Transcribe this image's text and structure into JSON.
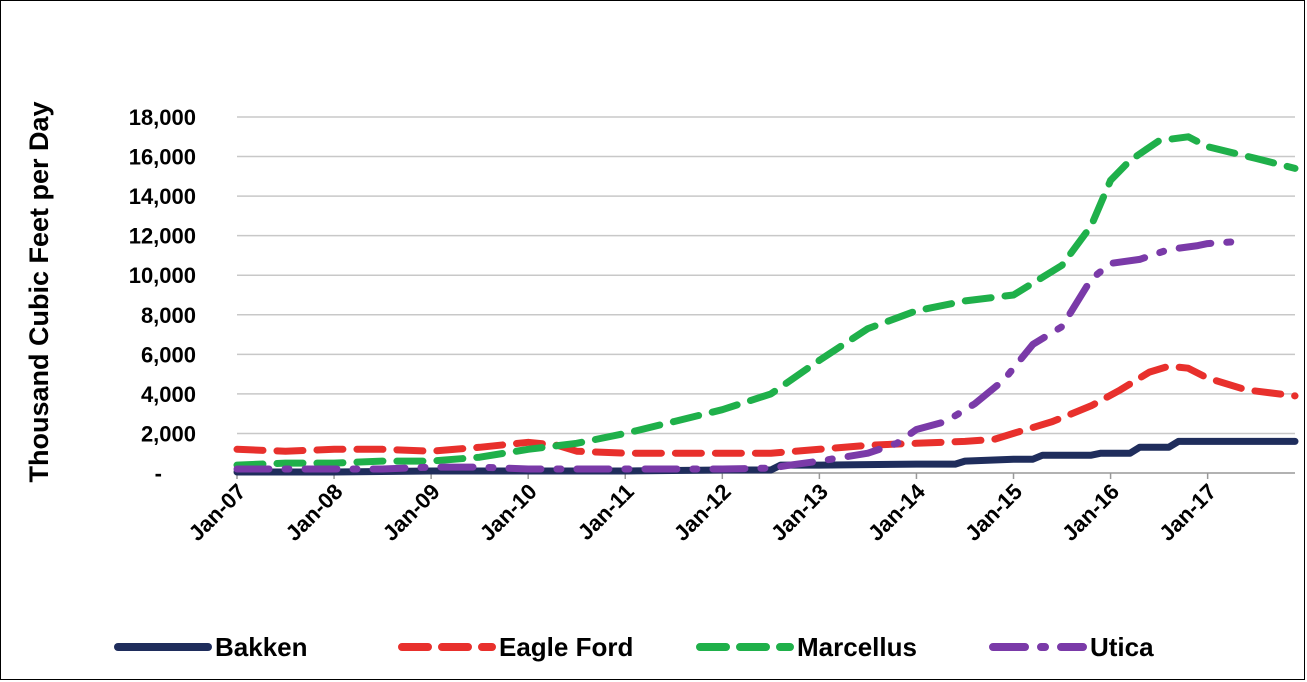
{
  "chart_data": {
    "type": "line",
    "title": "",
    "ylabel": "Thousand Cubic Feet per Day",
    "xlabel": "",
    "ylim": [
      0,
      18000
    ],
    "yticks": [
      0,
      2000,
      4000,
      6000,
      8000,
      10000,
      12000,
      14000,
      16000,
      18000
    ],
    "ytick_labels": [
      "-",
      "2,000",
      "4,000",
      "6,000",
      "8,000",
      "10,000",
      "12,000",
      "14,000",
      "16,000",
      "18,000"
    ],
    "xtick_labels": [
      "Jan-07",
      "Jan-08",
      "Jan-09",
      "Jan-10",
      "Jan-11",
      "Jan-12",
      "Jan-13",
      "Jan-14",
      "Jan-15",
      "Jan-16",
      "Jan-17"
    ],
    "xlim": [
      2007.0,
      2017.9
    ],
    "grid": "horizontal",
    "legend_position": "bottom",
    "series": [
      {
        "name": "Bakken",
        "color": "#1f2d5c",
        "style": "solid",
        "x": [
          2007.0,
          2008.0,
          2009.0,
          2010.0,
          2011.0,
          2012.0,
          2012.5,
          2012.6,
          2013.0,
          2014.0,
          2014.4,
          2014.5,
          2015.0,
          2015.2,
          2015.3,
          2015.8,
          2015.9,
          2016.2,
          2016.3,
          2016.6,
          2016.7,
          2017.0,
          2017.9
        ],
        "y": [
          50,
          50,
          100,
          100,
          100,
          150,
          150,
          400,
          400,
          450,
          450,
          600,
          700,
          700,
          900,
          900,
          1000,
          1000,
          1300,
          1300,
          1600,
          1600,
          1600
        ]
      },
      {
        "name": "Eagle Ford",
        "color": "#e8302c",
        "style": "dashed",
        "x": [
          2007.0,
          2007.5,
          2008.0,
          2008.5,
          2009.0,
          2009.5,
          2010.0,
          2010.3,
          2010.5,
          2011.0,
          2011.5,
          2012.0,
          2012.5,
          2013.0,
          2013.5,
          2014.0,
          2014.5,
          2014.8,
          2015.0,
          2015.4,
          2015.8,
          2016.1,
          2016.4,
          2016.6,
          2016.8,
          2017.0,
          2017.4,
          2017.9
        ],
        "y": [
          1200,
          1100,
          1200,
          1200,
          1100,
          1300,
          1550,
          1400,
          1100,
          1000,
          1000,
          1000,
          1000,
          1200,
          1400,
          1500,
          1600,
          1700,
          2000,
          2600,
          3400,
          4200,
          5100,
          5400,
          5300,
          4800,
          4200,
          3900
        ]
      },
      {
        "name": "Marcellus",
        "color": "#1fb04a",
        "style": "dashed",
        "x": [
          2007.0,
          2007.5,
          2008.0,
          2008.5,
          2009.0,
          2009.5,
          2010.0,
          2010.5,
          2011.0,
          2011.5,
          2012.0,
          2012.5,
          2013.0,
          2013.5,
          2014.0,
          2014.5,
          2015.0,
          2015.5,
          2015.8,
          2016.0,
          2016.2,
          2016.5,
          2016.8,
          2017.0,
          2017.5,
          2017.9
        ],
        "y": [
          400,
          500,
          500,
          600,
          600,
          800,
          1200,
          1500,
          2000,
          2600,
          3200,
          4000,
          5700,
          7300,
          8200,
          8700,
          9000,
          10500,
          12500,
          14800,
          15800,
          16800,
          17000,
          16500,
          15900,
          15400
        ]
      },
      {
        "name": "Utica",
        "color": "#7a3aa8",
        "style": "dashdot",
        "x": [
          2007.0,
          2007.5,
          2008.0,
          2008.5,
          2009.0,
          2009.5,
          2010.0,
          2010.5,
          2011.0,
          2011.5,
          2012.0,
          2012.5,
          2012.7,
          2013.0,
          2013.5,
          2013.8,
          2014.0,
          2014.3,
          2014.6,
          2014.9,
          2015.2,
          2015.5,
          2015.8,
          2016.0,
          2016.3,
          2016.6,
          2016.9,
          2017.0,
          2017.3
        ],
        "y": [
          200,
          200,
          200,
          200,
          300,
          300,
          200,
          200,
          200,
          200,
          200,
          250,
          400,
          600,
          1000,
          1500,
          2200,
          2600,
          3500,
          4700,
          6500,
          7400,
          9800,
          10600,
          10800,
          11300,
          11500,
          11600,
          11700
        ]
      }
    ]
  }
}
